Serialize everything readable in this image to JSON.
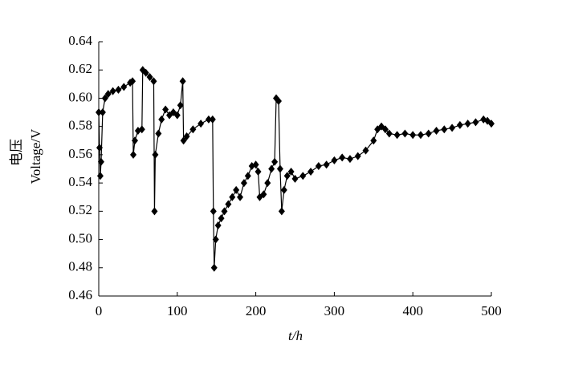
{
  "chart_data": {
    "type": "line",
    "y_label_cn": "电压",
    "y_label": "Voltage/V",
    "x_label": "t/h",
    "xlim": [
      0,
      500
    ],
    "xticks": [
      0,
      100,
      200,
      300,
      400,
      500
    ],
    "ylim": [
      0.46,
      0.64
    ],
    "yticks": [
      0.46,
      0.48,
      {
        "value": 0.5,
        "label": "0.50"
      },
      0.52,
      0.54,
      0.56,
      0.58,
      {
        "value": 0.6,
        "label": "0.60"
      },
      0.62,
      0.64
    ],
    "grid": false,
    "series": [
      {
        "name": "Voltage",
        "color": "#000000",
        "x": [
          0,
          1,
          2,
          3,
          5,
          8,
          12,
          18,
          25,
          32,
          40,
          43,
          44,
          46,
          50,
          55,
          56,
          60,
          65,
          70,
          71,
          72,
          76,
          80,
          85,
          90,
          95,
          100,
          104,
          107,
          108,
          112,
          120,
          130,
          140,
          145,
          146,
          147,
          149,
          152,
          156,
          160,
          165,
          170,
          175,
          180,
          185,
          190,
          195,
          200,
          203,
          205,
          210,
          215,
          220,
          224,
          226,
          229,
          231,
          233,
          236,
          240,
          245,
          250,
          260,
          270,
          280,
          290,
          300,
          310,
          320,
          330,
          340,
          350,
          355,
          360,
          365,
          370,
          380,
          390,
          400,
          410,
          420,
          430,
          440,
          450,
          460,
          470,
          480,
          490,
          495,
          500
        ],
        "values": [
          0.59,
          0.565,
          0.545,
          0.555,
          0.59,
          0.6,
          0.603,
          0.605,
          0.606,
          0.608,
          0.611,
          0.612,
          0.56,
          0.57,
          0.577,
          0.578,
          0.62,
          0.618,
          0.615,
          0.612,
          0.52,
          0.56,
          0.575,
          0.585,
          0.592,
          0.588,
          0.59,
          0.588,
          0.595,
          0.612,
          0.57,
          0.573,
          0.578,
          0.582,
          0.585,
          0.585,
          0.52,
          0.48,
          0.5,
          0.51,
          0.515,
          0.52,
          0.525,
          0.53,
          0.535,
          0.53,
          0.54,
          0.545,
          0.552,
          0.553,
          0.548,
          0.53,
          0.532,
          0.54,
          0.55,
          0.555,
          0.6,
          0.598,
          0.55,
          0.52,
          0.535,
          0.545,
          0.548,
          0.543,
          0.545,
          0.548,
          0.552,
          0.553,
          0.556,
          0.558,
          0.557,
          0.559,
          0.563,
          0.57,
          0.578,
          0.58,
          0.578,
          0.575,
          0.574,
          0.575,
          0.574,
          0.574,
          0.575,
          0.577,
          0.578,
          0.579,
          0.581,
          0.582,
          0.583,
          0.585,
          0.584,
          0.582
        ]
      }
    ]
  }
}
